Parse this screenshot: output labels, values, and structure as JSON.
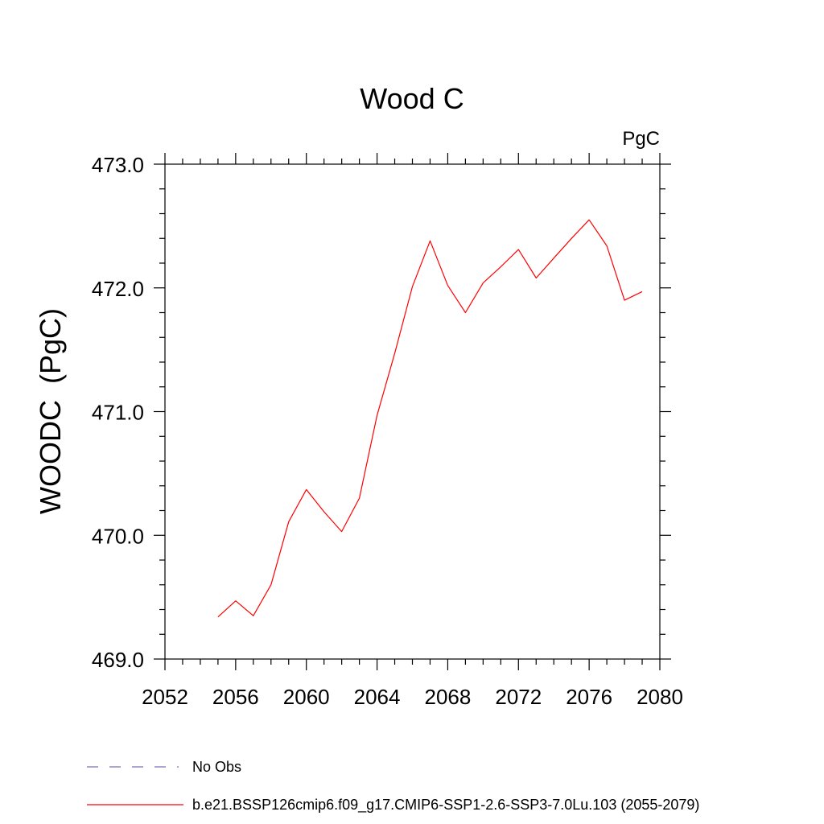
{
  "chart_data": {
    "type": "line",
    "title": "Wood C",
    "units_label": "PgC",
    "ylabel": "WOODC  (PgC)",
    "xlabel": "",
    "xlim": [
      2052,
      2080
    ],
    "ylim": [
      469.0,
      473.0
    ],
    "x_ticks": [
      2052,
      2056,
      2060,
      2064,
      2068,
      2072,
      2076,
      2080
    ],
    "x_tick_labels": [
      "2052",
      "2056",
      "2060",
      "2064",
      "2068",
      "2072",
      "2076",
      "2080"
    ],
    "y_ticks": [
      469.0,
      470.0,
      471.0,
      472.0,
      473.0
    ],
    "y_tick_labels": [
      "469.0",
      "470.0",
      "471.0",
      "472.0",
      "473.0"
    ],
    "grid": false,
    "legend_position": "bottom",
    "series": [
      {
        "name": "b.e21.BSSP126cmip6.f09_g17.CMIP6-SSP1-2.6-SSP3-7.0Lu.103 (2055-2079)",
        "color": "#ff0000",
        "style": "solid",
        "x": [
          2055,
          2056,
          2057,
          2058,
          2059,
          2060,
          2061,
          2062,
          2063,
          2064,
          2065,
          2066,
          2067,
          2068,
          2069,
          2070,
          2071,
          2072,
          2073,
          2074,
          2075,
          2076,
          2077,
          2078,
          2079
        ],
        "y": [
          469.34,
          469.47,
          469.35,
          469.6,
          470.11,
          470.37,
          470.19,
          470.03,
          470.3,
          470.97,
          471.47,
          472.01,
          472.38,
          472.02,
          471.8,
          472.04,
          472.17,
          472.31,
          472.08,
          472.24,
          472.4,
          472.55,
          472.34,
          471.9,
          471.97
        ]
      }
    ],
    "legend": [
      {
        "label": "No Obs",
        "color": "#7a6fb8",
        "style": "dashed"
      },
      {
        "label": "b.e21.BSSP126cmip6.f09_g17.CMIP6-SSP1-2.6-SSP3-7.0Lu.103 (2055-2079)",
        "color": "#ff0000",
        "style": "solid"
      }
    ]
  }
}
